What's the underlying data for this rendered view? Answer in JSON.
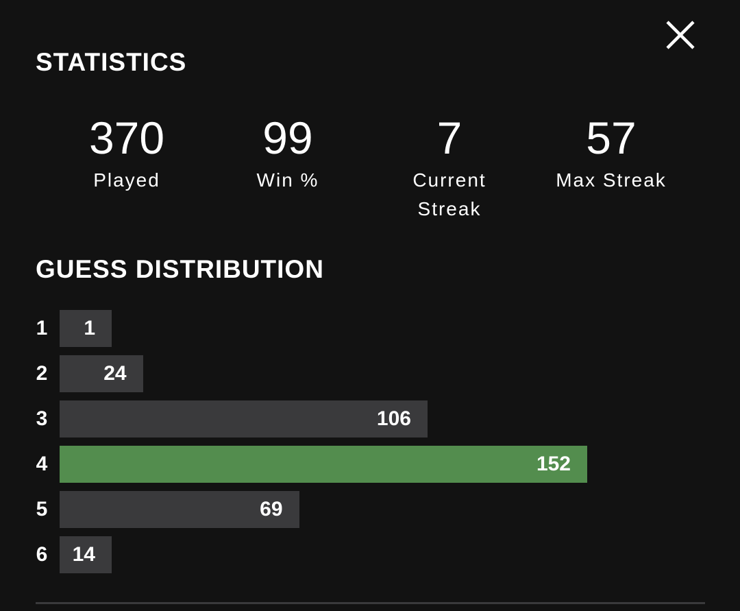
{
  "title": "STATISTICS",
  "stats": [
    {
      "value": "370",
      "label": "Played"
    },
    {
      "value": "99",
      "label": "Win %"
    },
    {
      "value": "7",
      "label": "Current Streak"
    },
    {
      "value": "57",
      "label": "Max Streak"
    }
  ],
  "distribution": {
    "title": "GUESS DISTRIBUTION",
    "rows": [
      {
        "label": "1",
        "value": 1,
        "color": "#3a3a3c"
      },
      {
        "label": "2",
        "value": 24,
        "color": "#3a3a3c"
      },
      {
        "label": "3",
        "value": 106,
        "color": "#3a3a3c"
      },
      {
        "label": "4",
        "value": 152,
        "color": "#538d4e"
      },
      {
        "label": "5",
        "value": 69,
        "color": "#3a3a3c"
      },
      {
        "label": "6",
        "value": 14,
        "color": "#3a3a3c"
      }
    ]
  }
}
